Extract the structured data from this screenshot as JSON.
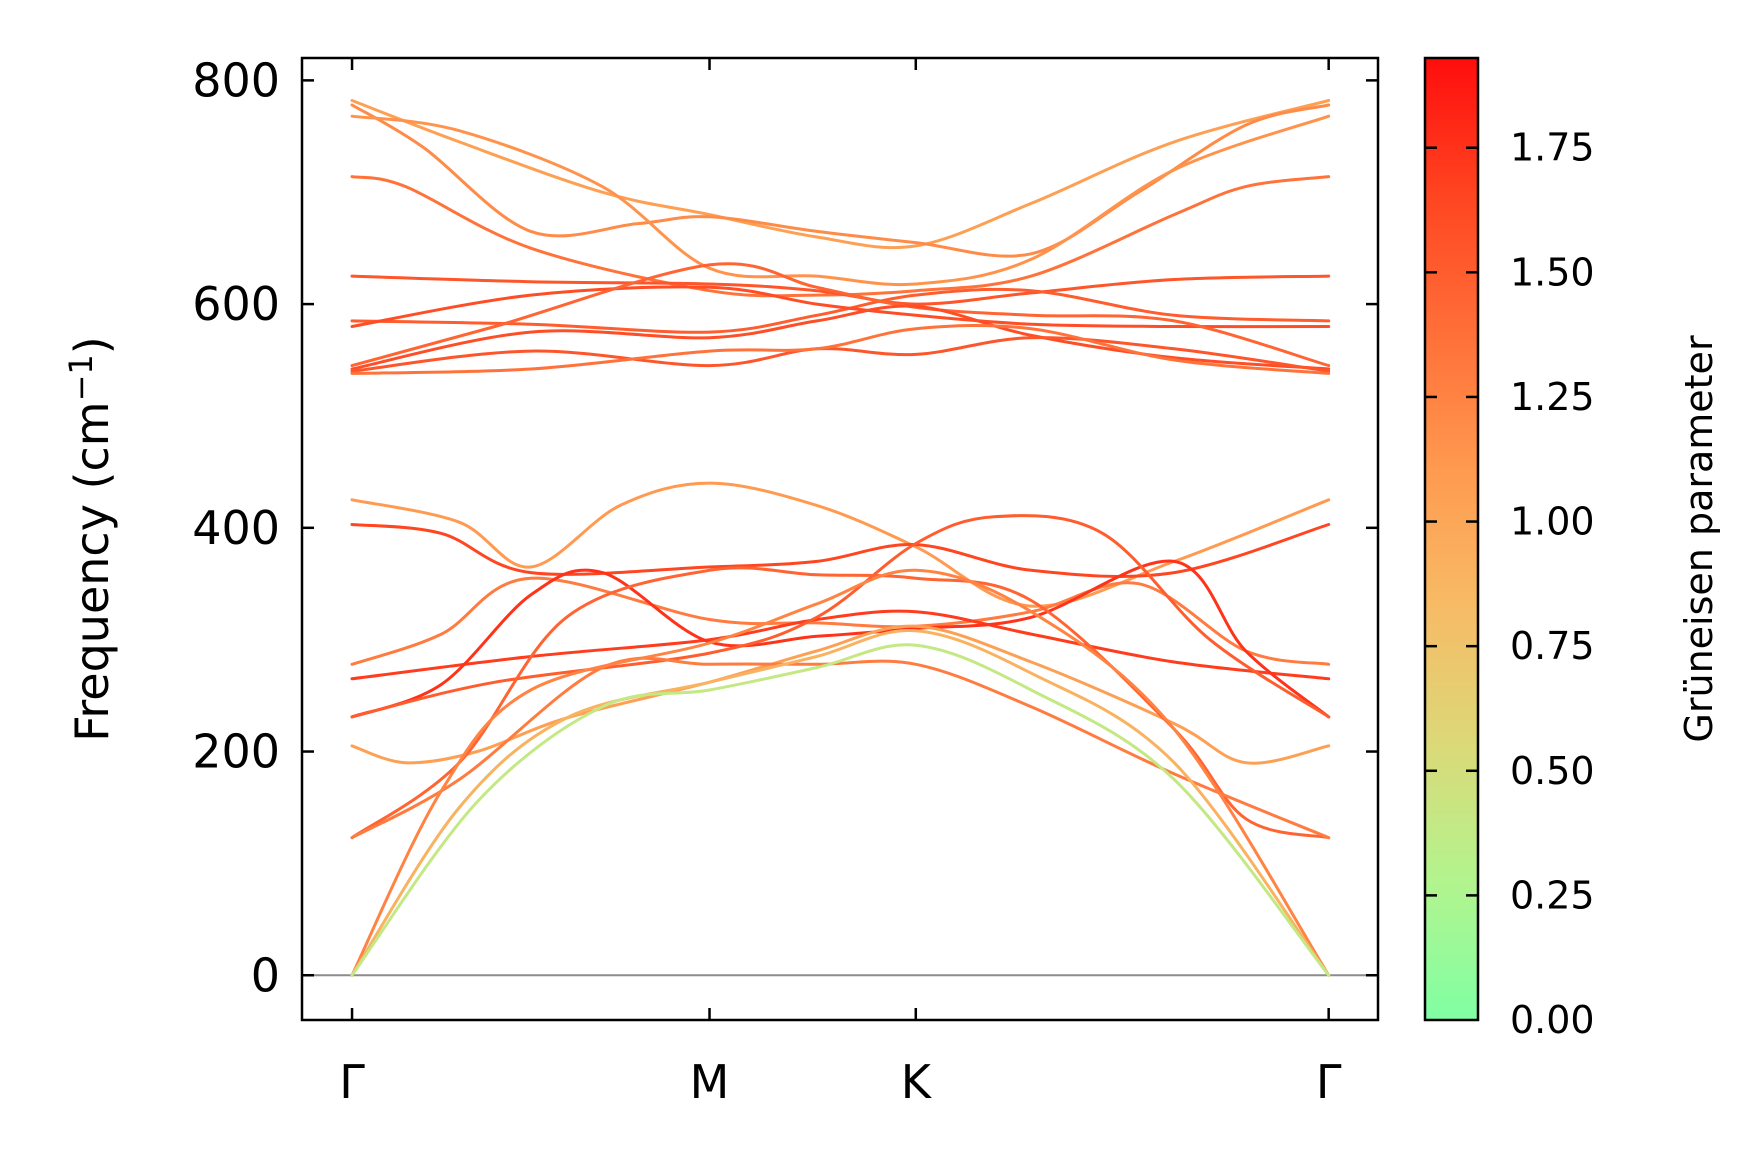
{
  "chart_data": {
    "type": "line",
    "ylabel": "Frequency (cm",
    "ylabel_sup": "−1",
    "ylabel_close": ")",
    "ylim": [
      -40,
      820
    ],
    "yticks": [
      "0",
      "200",
      "400",
      "600",
      "800"
    ],
    "ytick_values": [
      0,
      200,
      400,
      600,
      800
    ],
    "x_ticks": [
      {
        "label": "Γ",
        "x": 0
      },
      {
        "label": "M",
        "x": 1
      },
      {
        "label": "K",
        "x": 1.577
      },
      {
        "label": "Γ",
        "x": 2.732
      }
    ],
    "xlim": [
      -0.14,
      2.87
    ],
    "zero_line": 0,
    "colorbar": {
      "label": "Grüneisen parameter",
      "ticks": [
        "0.00",
        "0.25",
        "0.50",
        "0.75",
        "1.00",
        "1.25",
        "1.50",
        "1.75"
      ],
      "tick_values": [
        0,
        0.25,
        0.5,
        0.75,
        1.0,
        1.25,
        1.5,
        1.75
      ],
      "range": [
        0,
        1.93
      ],
      "colors": [
        "#80ffa3",
        "#b2f48e",
        "#dbd978",
        "#f7bb66",
        "#ff9a50",
        "#ff6f38",
        "#ff4521",
        "#ff0d0d"
      ]
    },
    "series": [
      {
        "gamma": 1.05,
        "points": [
          [
            0,
            782
          ],
          [
            0.3,
            745
          ],
          [
            0.7,
            700
          ],
          [
            1.0,
            680
          ],
          [
            1.3,
            660
          ],
          [
            1.577,
            652
          ],
          [
            1.9,
            690
          ],
          [
            2.3,
            745
          ],
          [
            2.732,
            782
          ]
        ]
      },
      {
        "gamma": 1.2,
        "points": [
          [
            0,
            778
          ],
          [
            0.2,
            740
          ],
          [
            0.5,
            665
          ],
          [
            0.8,
            672
          ],
          [
            1.0,
            678
          ],
          [
            1.3,
            665
          ],
          [
            1.577,
            655
          ],
          [
            1.9,
            645
          ],
          [
            2.2,
            700
          ],
          [
            2.5,
            760
          ],
          [
            2.732,
            778
          ]
        ]
      },
      {
        "gamma": 1.15,
        "points": [
          [
            0,
            768
          ],
          [
            0.3,
            755
          ],
          [
            0.7,
            705
          ],
          [
            1.0,
            632
          ],
          [
            1.3,
            625
          ],
          [
            1.577,
            618
          ],
          [
            1.9,
            640
          ],
          [
            2.3,
            720
          ],
          [
            2.732,
            768
          ]
        ]
      },
      {
        "gamma": 1.35,
        "points": [
          [
            0,
            714
          ],
          [
            0.15,
            705
          ],
          [
            0.5,
            650
          ],
          [
            1.0,
            612
          ],
          [
            1.3,
            608
          ],
          [
            1.577,
            612
          ],
          [
            1.9,
            625
          ],
          [
            2.3,
            680
          ],
          [
            2.5,
            705
          ],
          [
            2.732,
            714
          ]
        ]
      },
      {
        "gamma": 1.55,
        "points": [
          [
            0,
            625
          ],
          [
            0.5,
            620
          ],
          [
            1.0,
            618
          ],
          [
            1.3,
            612
          ],
          [
            1.577,
            600
          ],
          [
            1.9,
            610
          ],
          [
            2.3,
            622
          ],
          [
            2.732,
            625
          ]
        ]
      },
      {
        "gamma": 1.5,
        "points": [
          [
            0,
            585
          ],
          [
            0.5,
            582
          ],
          [
            1.0,
            575
          ],
          [
            1.3,
            590
          ],
          [
            1.577,
            608
          ],
          [
            1.9,
            612
          ],
          [
            2.3,
            590
          ],
          [
            2.732,
            585
          ]
        ]
      },
      {
        "gamma": 1.6,
        "points": [
          [
            0,
            580
          ],
          [
            0.5,
            608
          ],
          [
            1.0,
            615
          ],
          [
            1.3,
            600
          ],
          [
            1.577,
            590
          ],
          [
            1.9,
            582
          ],
          [
            2.3,
            580
          ],
          [
            2.732,
            580
          ]
        ]
      },
      {
        "gamma": 1.45,
        "points": [
          [
            0,
            545
          ],
          [
            0.4,
            580
          ],
          [
            1.0,
            635
          ],
          [
            1.3,
            615
          ],
          [
            1.577,
            597
          ],
          [
            1.9,
            590
          ],
          [
            2.3,
            585
          ],
          [
            2.732,
            545
          ]
        ]
      },
      {
        "gamma": 1.6,
        "points": [
          [
            0,
            542
          ],
          [
            0.5,
            575
          ],
          [
            1.0,
            570
          ],
          [
            1.3,
            585
          ],
          [
            1.577,
            598
          ],
          [
            1.9,
            572
          ],
          [
            2.3,
            552
          ],
          [
            2.732,
            542
          ]
        ]
      },
      {
        "gamma": 1.55,
        "points": [
          [
            0,
            540
          ],
          [
            0.5,
            558
          ],
          [
            1.0,
            545
          ],
          [
            1.3,
            560
          ],
          [
            1.577,
            555
          ],
          [
            1.9,
            570
          ],
          [
            2.3,
            560
          ],
          [
            2.732,
            540
          ]
        ]
      },
      {
        "gamma": 1.35,
        "points": [
          [
            0,
            538
          ],
          [
            0.5,
            542
          ],
          [
            1.0,
            558
          ],
          [
            1.3,
            560
          ],
          [
            1.577,
            578
          ],
          [
            1.9,
            578
          ],
          [
            2.3,
            550
          ],
          [
            2.732,
            538
          ]
        ]
      },
      {
        "gamma": 1.1,
        "points": [
          [
            0,
            425
          ],
          [
            0.3,
            405
          ],
          [
            0.5,
            365
          ],
          [
            0.75,
            420
          ],
          [
            1.0,
            440
          ],
          [
            1.3,
            420
          ],
          [
            1.577,
            383
          ],
          [
            1.9,
            330
          ],
          [
            2.3,
            370
          ],
          [
            2.732,
            425
          ]
        ]
      },
      {
        "gamma": 1.65,
        "points": [
          [
            0,
            403
          ],
          [
            0.25,
            395
          ],
          [
            0.5,
            360
          ],
          [
            1.0,
            365
          ],
          [
            1.3,
            370
          ],
          [
            1.577,
            385
          ],
          [
            1.9,
            362
          ],
          [
            2.3,
            360
          ],
          [
            2.732,
            403
          ]
        ]
      },
      {
        "gamma": 1.3,
        "points": [
          [
            0,
            278
          ],
          [
            0.25,
            305
          ],
          [
            0.5,
            355
          ],
          [
            1.0,
            318
          ],
          [
            1.3,
            315
          ],
          [
            1.577,
            312
          ],
          [
            1.9,
            325
          ],
          [
            2.2,
            350
          ],
          [
            2.5,
            290
          ],
          [
            2.732,
            278
          ]
        ]
      },
      {
        "gamma": 1.7,
        "points": [
          [
            0,
            265
          ],
          [
            0.5,
            285
          ],
          [
            1.0,
            300
          ],
          [
            1.3,
            318
          ],
          [
            1.577,
            325
          ],
          [
            1.9,
            305
          ],
          [
            2.3,
            280
          ],
          [
            2.732,
            265
          ]
        ]
      },
      {
        "gamma": 1.75,
        "points": [
          [
            0,
            231
          ],
          [
            0.25,
            260
          ],
          [
            0.5,
            340
          ],
          [
            0.7,
            360
          ],
          [
            1.0,
            298
          ],
          [
            1.3,
            303
          ],
          [
            1.577,
            310
          ],
          [
            1.9,
            320
          ],
          [
            2.3,
            370
          ],
          [
            2.5,
            290
          ],
          [
            2.732,
            231
          ]
        ]
      },
      {
        "gamma": 1.5,
        "points": [
          [
            0,
            231
          ],
          [
            0.4,
            262
          ],
          [
            1.0,
            288
          ],
          [
            1.3,
            320
          ],
          [
            1.577,
            386
          ],
          [
            1.8,
            410
          ],
          [
            2.1,
            395
          ],
          [
            2.4,
            300
          ],
          [
            2.732,
            231
          ]
        ]
      },
      {
        "gamma": 1.05,
        "points": [
          [
            0,
            205
          ],
          [
            0.15,
            190
          ],
          [
            0.35,
            200
          ],
          [
            0.6,
            230
          ],
          [
            1.0,
            262
          ],
          [
            1.3,
            290
          ],
          [
            1.577,
            312
          ],
          [
            1.9,
            280
          ],
          [
            2.3,
            225
          ],
          [
            2.5,
            190
          ],
          [
            2.732,
            205
          ]
        ]
      },
      {
        "gamma": 1.45,
        "points": [
          [
            0,
            123
          ],
          [
            0.3,
            190
          ],
          [
            0.6,
            320
          ],
          [
            1.0,
            362
          ],
          [
            1.3,
            358
          ],
          [
            1.577,
            355
          ],
          [
            1.9,
            335
          ],
          [
            2.3,
            220
          ],
          [
            2.5,
            140
          ],
          [
            2.732,
            123
          ]
        ]
      },
      {
        "gamma": 1.3,
        "points": [
          [
            0,
            123
          ],
          [
            0.3,
            175
          ],
          [
            0.7,
            275
          ],
          [
            1.0,
            278
          ],
          [
            1.3,
            278
          ],
          [
            1.577,
            278
          ],
          [
            1.9,
            240
          ],
          [
            2.3,
            180
          ],
          [
            2.732,
            123
          ]
        ]
      },
      {
        "gamma": 1.25,
        "points": [
          [
            0,
            0
          ],
          [
            0.25,
            165
          ],
          [
            0.5,
            255
          ],
          [
            1.0,
            297
          ],
          [
            1.3,
            332
          ],
          [
            1.577,
            362
          ],
          [
            1.9,
            325
          ],
          [
            2.3,
            220
          ],
          [
            2.732,
            0
          ]
        ]
      },
      {
        "gamma": 0.9,
        "points": [
          [
            0,
            0
          ],
          [
            0.3,
            150
          ],
          [
            0.6,
            230
          ],
          [
            1.0,
            262
          ],
          [
            1.3,
            285
          ],
          [
            1.577,
            308
          ],
          [
            1.9,
            270
          ],
          [
            2.3,
            190
          ],
          [
            2.732,
            0
          ]
        ]
      },
      {
        "gamma": 0.4,
        "points": [
          [
            0,
            0
          ],
          [
            0.35,
            155
          ],
          [
            0.7,
            240
          ],
          [
            1.0,
            255
          ],
          [
            1.3,
            275
          ],
          [
            1.577,
            295
          ],
          [
            1.9,
            255
          ],
          [
            2.3,
            175
          ],
          [
            2.732,
            0
          ]
        ]
      }
    ]
  }
}
